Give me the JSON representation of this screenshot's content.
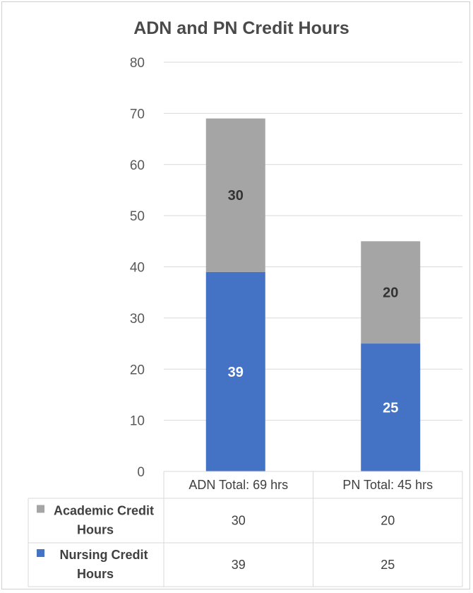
{
  "chart_data": {
    "type": "bar",
    "stacked": true,
    "title": "ADN and PN Credit Hours",
    "categories": [
      "ADN Total: 69 hrs",
      "PN Total: 45 hrs"
    ],
    "series": [
      {
        "name": "Nursing Credit Hours",
        "values": [
          39,
          25
        ],
        "color": "#4472c4",
        "label_color": "#ffffff"
      },
      {
        "name": "Academic Credit Hours",
        "values": [
          30,
          20
        ],
        "color": "#a5a5a5",
        "label_color": "#333333"
      }
    ],
    "ylim": [
      0,
      80
    ],
    "yticks": [
      0,
      10,
      20,
      30,
      40,
      50,
      60,
      70,
      80
    ],
    "grid": true,
    "legend": "data-table",
    "data_table": {
      "rows": [
        {
          "name": "Academic Credit Hours",
          "name_lines": [
            "Academic Credit",
            "Hours"
          ],
          "values": [
            "30",
            "20"
          ],
          "color": "#a5a5a5"
        },
        {
          "name": "Nursing Credit Hours",
          "name_lines": [
            "Nursing Credit",
            "Hours"
          ],
          "values": [
            "39",
            "25"
          ],
          "color": "#4472c4"
        }
      ]
    }
  }
}
